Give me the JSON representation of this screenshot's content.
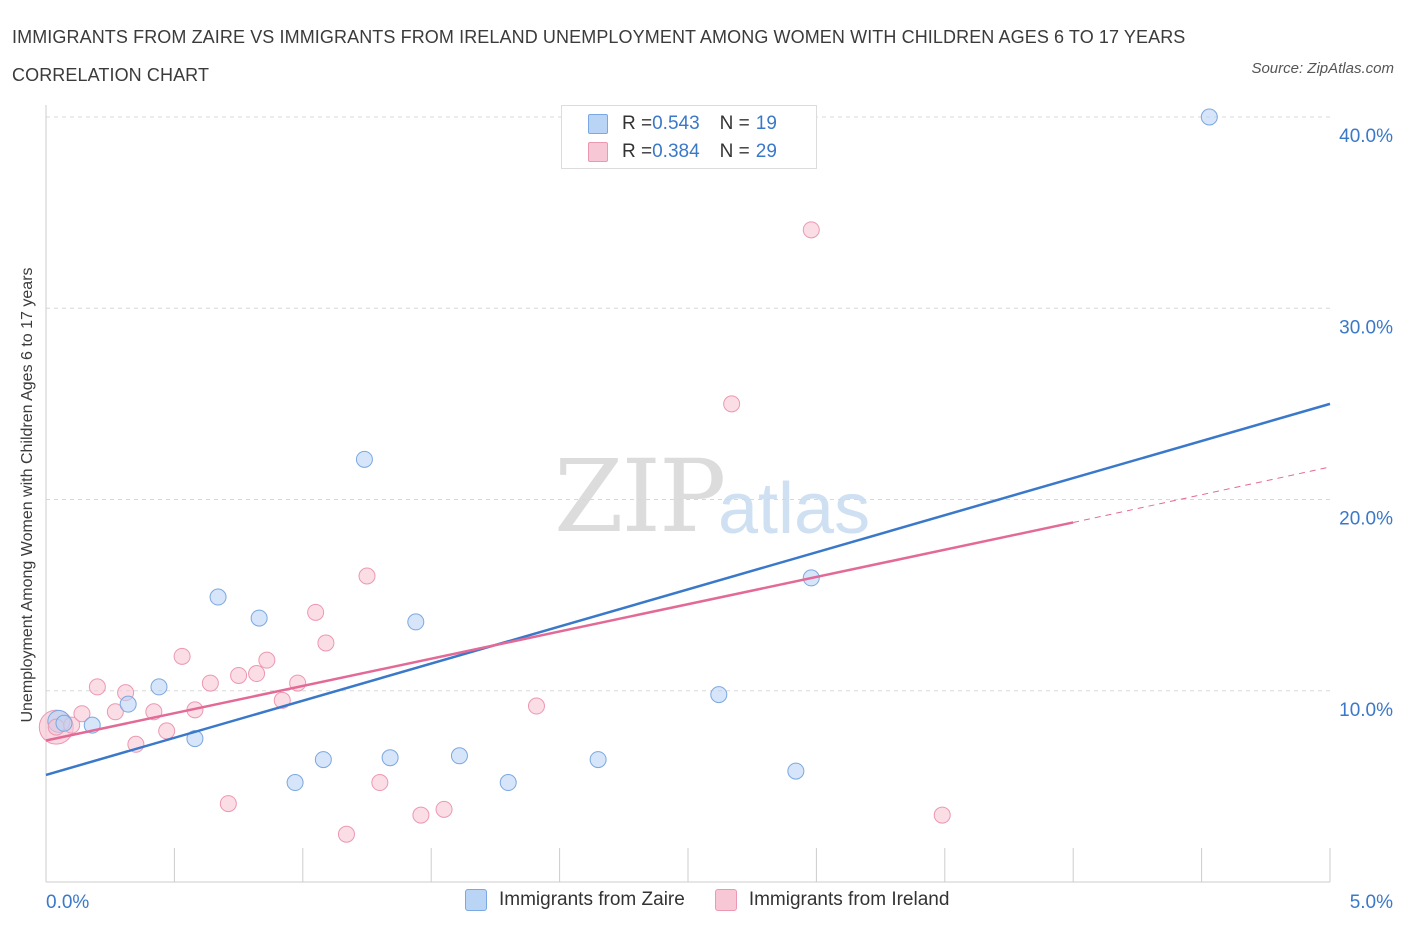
{
  "title": "IMMIGRANTS FROM ZAIRE VS IMMIGRANTS FROM IRELAND UNEMPLOYMENT AMONG WOMEN WITH CHILDREN AGES 6 TO 17 YEARS CORRELATION CHART",
  "source": "Source: ZipAtlas.com",
  "watermark": {
    "zip": "ZIP",
    "atlas": "atlas"
  },
  "legend_top": [
    {
      "r_label": "R = ",
      "r": "0.543",
      "n_label": "N = ",
      "n": "19"
    },
    {
      "r_label": "R = ",
      "r": "0.384",
      "n_label": "N = ",
      "n": "29"
    }
  ],
  "colors": {
    "zaire_fill": "#bad4f5",
    "zaire_stroke": "#7aa8e0",
    "zaire_line": "#3a78c9",
    "ireland_fill": "#f8c7d6",
    "ireland_stroke": "#ec98b2",
    "ireland_line": "#e36a96",
    "tick_text": "#3a78c9",
    "grid": "#d8d8d8"
  },
  "chart_data": {
    "type": "scatter",
    "title": "IMMIGRANTS FROM ZAIRE VS IMMIGRANTS FROM IRELAND UNEMPLOYMENT AMONG WOMEN WITH CHILDREN AGES 6 TO 17 YEARS CORRELATION CHART",
    "xlabel": "",
    "ylabel": "Unemployment Among Women with Children Ages 6 to 17 years",
    "xlim": [
      0,
      5
    ],
    "ylim": [
      0,
      40
    ],
    "x_tick_labels": [
      "0.0%",
      "5.0%"
    ],
    "y_ticks": [
      10,
      20,
      30,
      40
    ],
    "y_tick_labels": [
      "10.0%",
      "20.0%",
      "30.0%",
      "40.0%"
    ],
    "grid": true,
    "legend_position": "bottom-center",
    "series": [
      {
        "name": "Immigrants from Zaire",
        "r": 0.543,
        "n": 19,
        "points": [
          [
            0.07,
            8.3
          ],
          [
            0.18,
            8.2
          ],
          [
            0.32,
            9.3
          ],
          [
            0.44,
            10.2
          ],
          [
            0.58,
            7.5
          ],
          [
            0.67,
            14.9
          ],
          [
            0.83,
            13.8
          ],
          [
            0.97,
            5.2
          ],
          [
            1.08,
            6.4
          ],
          [
            1.24,
            22.1
          ],
          [
            1.34,
            6.5
          ],
          [
            1.44,
            13.6
          ],
          [
            1.61,
            6.6
          ],
          [
            1.8,
            5.2
          ],
          [
            2.15,
            6.4
          ],
          [
            2.62,
            9.8
          ],
          [
            2.92,
            5.8
          ],
          [
            2.98,
            15.9
          ],
          [
            4.53,
            40.0
          ]
        ],
        "trend": {
          "x": [
            0,
            5
          ],
          "y": [
            5.6,
            25.0
          ]
        }
      },
      {
        "name": "Immigrants from Ireland",
        "r": 0.384,
        "n": 29,
        "points": [
          [
            0.04,
            8.1
          ],
          [
            0.1,
            8.2
          ],
          [
            0.14,
            8.8
          ],
          [
            0.2,
            10.2
          ],
          [
            0.27,
            8.9
          ],
          [
            0.31,
            9.9
          ],
          [
            0.35,
            7.2
          ],
          [
            0.42,
            8.9
          ],
          [
            0.47,
            7.9
          ],
          [
            0.53,
            11.8
          ],
          [
            0.58,
            9.0
          ],
          [
            0.64,
            10.4
          ],
          [
            0.71,
            4.1
          ],
          [
            0.75,
            10.8
          ],
          [
            0.82,
            10.9
          ],
          [
            0.86,
            11.6
          ],
          [
            0.92,
            9.5
          ],
          [
            0.98,
            10.4
          ],
          [
            1.05,
            14.1
          ],
          [
            1.09,
            12.5
          ],
          [
            1.17,
            2.5
          ],
          [
            1.25,
            16.0
          ],
          [
            1.3,
            5.2
          ],
          [
            1.46,
            3.5
          ],
          [
            1.55,
            3.8
          ],
          [
            1.91,
            9.2
          ],
          [
            2.67,
            25.0
          ],
          [
            2.98,
            34.1
          ],
          [
            3.49,
            3.5
          ]
        ],
        "trend": {
          "x": [
            0,
            4
          ],
          "y": [
            7.4,
            18.8
          ]
        },
        "trend_dashed": {
          "x": [
            4,
            5
          ],
          "y": [
            18.8,
            21.7
          ]
        }
      }
    ]
  },
  "bottom_legend": [
    "Immigrants from Zaire",
    "Immigrants from Ireland"
  ]
}
